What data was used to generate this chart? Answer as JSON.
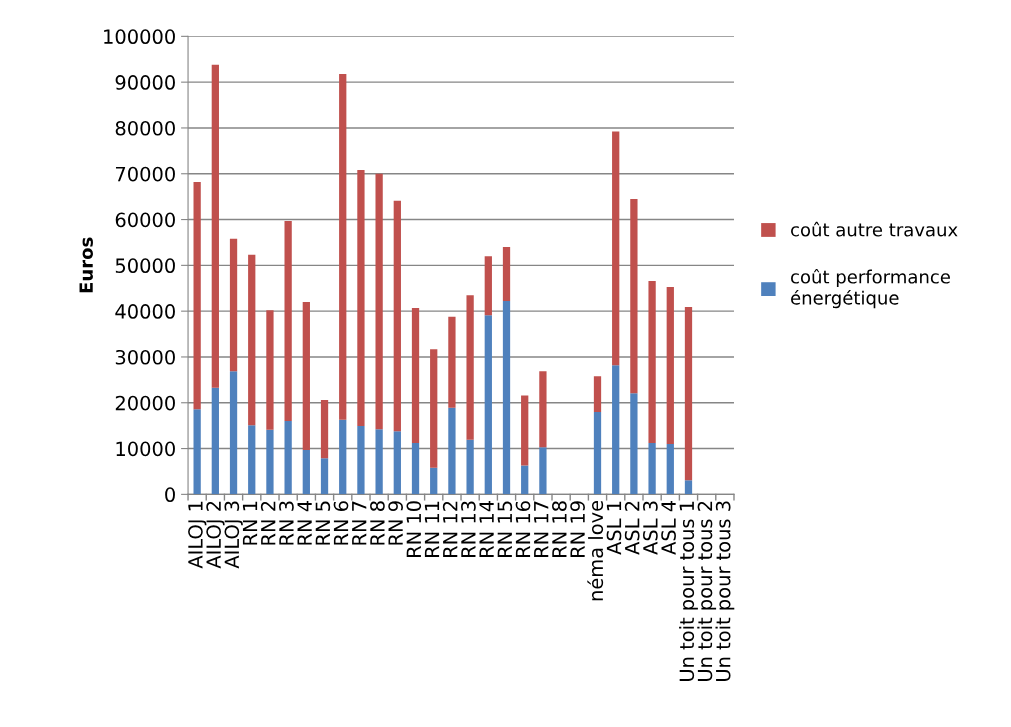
{
  "chart_data": {
    "type": "bar",
    "stacked": true,
    "ylabel": "Euros",
    "categories": [
      "AILOJ 1",
      "AILOJ 2",
      "AILOJ 3",
      "RN 1",
      "RN 2",
      "RN 3",
      "RN 4",
      "RN 5",
      "RN 6",
      "RN 7",
      "RN 8",
      "RN 9",
      "RN 10",
      "RN 11",
      "RN 12",
      "RN 13",
      "RN 14",
      "RN 15",
      "RN 16",
      "RN 17",
      "RN 18",
      "RN 19",
      "néma love",
      "ASL 1",
      "ASL 2",
      "ASL 3",
      "ASL 4",
      "Un toit pour tous 1",
      "Un toit pour tous 2",
      "Un toit pour tous 3"
    ],
    "series": [
      {
        "name": "coût performance énergétique",
        "color": "#4f81bd",
        "values": [
          18600,
          23300,
          26900,
          15100,
          14100,
          16000,
          9700,
          7900,
          16300,
          14900,
          14200,
          13800,
          11200,
          5800,
          18900,
          11900,
          39100,
          42200,
          6300,
          10300,
          null,
          null,
          18000,
          28200,
          22100,
          11200,
          11000,
          3100,
          null,
          null
        ]
      },
      {
        "name": "coût autre travaux",
        "color": "#c0504d",
        "values": [
          49600,
          70500,
          28900,
          37200,
          26100,
          43700,
          32300,
          12700,
          75500,
          55900,
          55800,
          50300,
          29500,
          25900,
          19900,
          31600,
          12900,
          11800,
          15300,
          16600,
          null,
          null,
          7800,
          51000,
          42400,
          35400,
          34300,
          37800,
          null,
          null
        ]
      }
    ],
    "ylim": [
      0,
      100000
    ],
    "yticks": [
      0,
      10000,
      20000,
      30000,
      40000,
      50000,
      60000,
      70000,
      80000,
      90000,
      100000
    ],
    "grid": "y",
    "legend": "right"
  }
}
